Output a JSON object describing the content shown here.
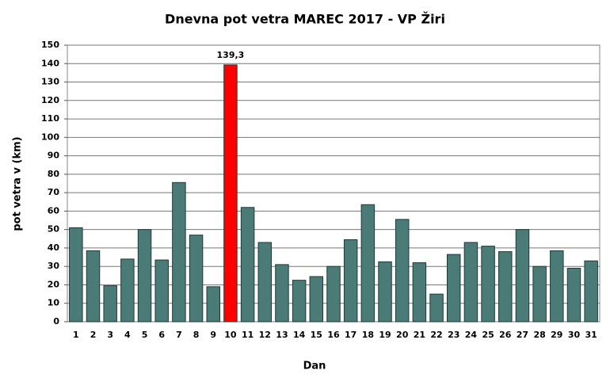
{
  "chart_data": {
    "type": "bar",
    "title": "Dnevna pot vetra MAREC 2017 - VP Žiri",
    "x_label": "Dan",
    "y_label": "pot vetra  v (km)",
    "categories": [
      "1",
      "2",
      "3",
      "4",
      "5",
      "6",
      "7",
      "8",
      "9",
      "10",
      "11",
      "12",
      "13",
      "14",
      "15",
      "16",
      "17",
      "18",
      "19",
      "20",
      "21",
      "22",
      "23",
      "24",
      "25",
      "26",
      "27",
      "28",
      "29",
      "30",
      "31"
    ],
    "values": [
      51,
      38.5,
      19.5,
      34,
      50,
      33.5,
      75.5,
      47,
      19,
      139.3,
      62,
      43,
      31,
      22.5,
      24.5,
      30,
      44.5,
      63.5,
      32.5,
      55.5,
      32,
      15,
      36.5,
      43,
      41,
      38,
      50,
      30,
      38.5,
      29,
      33
    ],
    "value_labels": [
      null,
      null,
      null,
      null,
      null,
      null,
      null,
      null,
      null,
      "139,3",
      null,
      null,
      null,
      null,
      null,
      null,
      null,
      null,
      null,
      null,
      null,
      null,
      null,
      null,
      null,
      null,
      null,
      null,
      null,
      null,
      null
    ],
    "colors": [
      "#4a7b77",
      "#4a7b77",
      "#4a7b77",
      "#4a7b77",
      "#4a7b77",
      "#4a7b77",
      "#4a7b77",
      "#4a7b77",
      "#4a7b77",
      "#ff0000",
      "#4a7b77",
      "#4a7b77",
      "#4a7b77",
      "#4a7b77",
      "#4a7b77",
      "#4a7b77",
      "#4a7b77",
      "#4a7b77",
      "#4a7b77",
      "#4a7b77",
      "#4a7b77",
      "#4a7b77",
      "#4a7b77",
      "#4a7b77",
      "#4a7b77",
      "#4a7b77",
      "#4a7b77",
      "#4a7b77",
      "#4a7b77",
      "#4a7b77",
      "#4a7b77"
    ],
    "ylim": [
      0,
      150
    ],
    "yticks": [
      0,
      10,
      20,
      30,
      40,
      50,
      60,
      70,
      80,
      90,
      100,
      110,
      120,
      130,
      140,
      150
    ],
    "grid": true
  }
}
